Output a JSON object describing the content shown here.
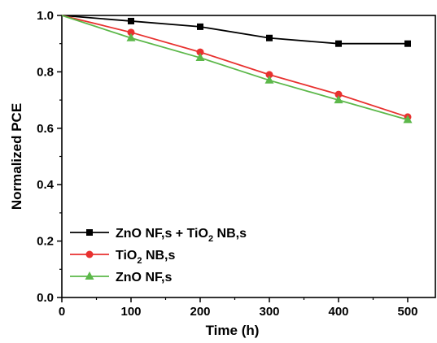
{
  "chart_data": {
    "type": "line",
    "title": "",
    "xlabel": "Time (h)",
    "ylabel": "Normalized PCE",
    "xlim": [
      0,
      540
    ],
    "ylim": [
      0.0,
      1.0
    ],
    "x_ticks": [
      "0",
      "100",
      "200",
      "300",
      "400",
      "500"
    ],
    "y_ticks": [
      "0.0",
      "0.2",
      "0.4",
      "0.6",
      "0.8",
      "1.0"
    ],
    "grid": false,
    "legend_position": "bottom-left",
    "x": [
      0,
      100,
      200,
      300,
      400,
      500
    ],
    "series": [
      {
        "name_parts": [
          "ZnO NF,s + TiO",
          "2",
          " NB,s"
        ],
        "color": "#000000",
        "marker": "square",
        "values": [
          1.0,
          0.98,
          0.96,
          0.92,
          0.9,
          0.9
        ]
      },
      {
        "name_parts": [
          "TiO",
          "2",
          " NB,s"
        ],
        "color": "#e8312f",
        "marker": "circle",
        "values": [
          1.0,
          0.94,
          0.87,
          0.79,
          0.72,
          0.64
        ]
      },
      {
        "name_parts": [
          "ZnO NF,s"
        ],
        "color": "#5cb84a",
        "marker": "triangle",
        "values": [
          1.0,
          0.92,
          0.85,
          0.77,
          0.7,
          0.63
        ]
      }
    ]
  }
}
